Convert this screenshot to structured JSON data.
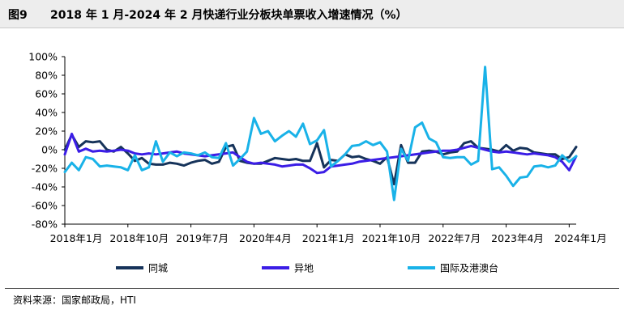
{
  "figure": {
    "label": "图9",
    "title": "2018 年 1 月-2024 年 2 月快递行业分板块单票收入增速情况（%）",
    "source": "资料来源：国家邮政局，HTI"
  },
  "chart_data": {
    "type": "line",
    "title": "2018 年 1 月-2024 年 2 月快递行业分板块单票收入增速情况（%）",
    "xlabel": "",
    "ylabel": "",
    "ylim": [
      -0.8,
      1.0
    ],
    "y_ticks": [
      -0.8,
      -0.6,
      -0.4,
      -0.2,
      0.0,
      0.2,
      0.4,
      0.6,
      0.8,
      1.0
    ],
    "y_tick_labels": [
      "-80%",
      "-60%",
      "-40%",
      "-20%",
      "0%",
      "20%",
      "40%",
      "60%",
      "80%",
      "100%"
    ],
    "x_start": "2018-01",
    "x_end": "2024-02",
    "x_tick_labels": [
      "2018年1月",
      "2018年10月",
      "2019年7月",
      "2020年4月",
      "2021年1月",
      "2021年10月",
      "2022年7月",
      "2023年4月",
      "2024年1月"
    ],
    "grid": false,
    "legend_position": "bottom",
    "x": [
      "2018-01",
      "2018-02",
      "2018-03",
      "2018-04",
      "2018-05",
      "2018-06",
      "2018-07",
      "2018-08",
      "2018-09",
      "2018-10",
      "2018-11",
      "2018-12",
      "2019-01",
      "2019-02",
      "2019-03",
      "2019-04",
      "2019-05",
      "2019-06",
      "2019-07",
      "2019-08",
      "2019-09",
      "2019-10",
      "2019-11",
      "2019-12",
      "2020-01",
      "2020-02",
      "2020-03",
      "2020-04",
      "2020-05",
      "2020-06",
      "2020-07",
      "2020-08",
      "2020-09",
      "2020-10",
      "2020-11",
      "2020-12",
      "2021-01",
      "2021-02",
      "2021-03",
      "2021-04",
      "2021-05",
      "2021-06",
      "2021-07",
      "2021-08",
      "2021-09",
      "2021-10",
      "2021-11",
      "2021-12",
      "2022-01",
      "2022-02",
      "2022-03",
      "2022-04",
      "2022-05",
      "2022-06",
      "2022-07",
      "2022-08",
      "2022-09",
      "2022-10",
      "2022-11",
      "2022-12",
      "2023-01",
      "2023-02",
      "2023-03",
      "2023-04",
      "2023-05",
      "2023-06",
      "2023-07",
      "2023-08",
      "2023-09",
      "2023-10",
      "2023-11",
      "2023-12",
      "2024-01",
      "2024-02"
    ],
    "series": [
      {
        "name": "同城",
        "color": "#16335a",
        "values": [
          0.0,
          0.16,
          0.03,
          0.09,
          0.08,
          0.09,
          0.0,
          -0.02,
          0.03,
          -0.04,
          -0.12,
          -0.09,
          -0.15,
          -0.16,
          -0.16,
          -0.14,
          -0.15,
          -0.17,
          -0.14,
          -0.12,
          -0.11,
          -0.15,
          -0.13,
          0.03,
          0.05,
          -0.12,
          -0.14,
          -0.15,
          -0.15,
          -0.12,
          -0.09,
          -0.1,
          -0.11,
          -0.1,
          -0.12,
          -0.12,
          0.07,
          -0.19,
          -0.11,
          -0.12,
          -0.05,
          -0.08,
          -0.07,
          -0.1,
          -0.12,
          -0.15,
          -0.08,
          -0.37,
          0.05,
          -0.14,
          -0.14,
          -0.02,
          -0.01,
          -0.02,
          -0.05,
          -0.03,
          -0.02,
          0.07,
          0.09,
          0.02,
          0.01,
          0.0,
          -0.02,
          0.05,
          -0.01,
          0.02,
          0.01,
          -0.03,
          -0.04,
          -0.05,
          -0.05,
          -0.1,
          -0.08,
          0.03
        ]
      },
      {
        "name": "异地",
        "color": "#3b1de6",
        "values": [
          -0.05,
          0.17,
          -0.02,
          0.01,
          -0.02,
          -0.01,
          -0.02,
          -0.01,
          0.0,
          -0.01,
          -0.04,
          -0.05,
          -0.04,
          -0.05,
          -0.04,
          -0.03,
          -0.02,
          -0.04,
          -0.05,
          -0.06,
          -0.07,
          -0.06,
          -0.05,
          -0.04,
          -0.03,
          -0.08,
          -0.13,
          -0.15,
          -0.14,
          -0.15,
          -0.16,
          -0.18,
          -0.17,
          -0.16,
          -0.16,
          -0.2,
          -0.25,
          -0.24,
          -0.18,
          -0.17,
          -0.16,
          -0.15,
          -0.13,
          -0.12,
          -0.11,
          -0.1,
          -0.09,
          -0.08,
          -0.07,
          -0.06,
          -0.05,
          -0.04,
          -0.03,
          -0.02,
          -0.01,
          -0.01,
          0.0,
          0.02,
          0.04,
          0.02,
          0.0,
          -0.02,
          -0.03,
          -0.02,
          -0.03,
          -0.04,
          -0.05,
          -0.04,
          -0.05,
          -0.06,
          -0.08,
          -0.13,
          -0.22,
          -0.07
        ]
      },
      {
        "name": "国际及港澳台",
        "color": "#19b2e8",
        "values": [
          -0.24,
          -0.14,
          -0.22,
          -0.08,
          -0.1,
          -0.18,
          -0.17,
          -0.18,
          -0.19,
          -0.22,
          -0.06,
          -0.22,
          -0.19,
          0.09,
          -0.13,
          -0.03,
          -0.07,
          -0.03,
          -0.04,
          -0.06,
          -0.03,
          -0.08,
          -0.09,
          0.07,
          -0.17,
          -0.1,
          -0.02,
          0.34,
          0.17,
          0.2,
          0.09,
          0.15,
          0.2,
          0.14,
          0.28,
          0.06,
          0.1,
          0.21,
          -0.18,
          -0.12,
          -0.05,
          0.04,
          0.05,
          0.09,
          0.05,
          0.08,
          -0.02,
          -0.54,
          0.01,
          -0.12,
          0.24,
          0.29,
          0.12,
          0.08,
          -0.08,
          -0.09,
          -0.08,
          -0.08,
          -0.16,
          -0.12,
          0.89,
          -0.21,
          -0.19,
          -0.28,
          -0.39,
          -0.3,
          -0.29,
          -0.18,
          -0.17,
          -0.19,
          -0.17,
          -0.06,
          -0.13,
          -0.07
        ]
      }
    ]
  }
}
